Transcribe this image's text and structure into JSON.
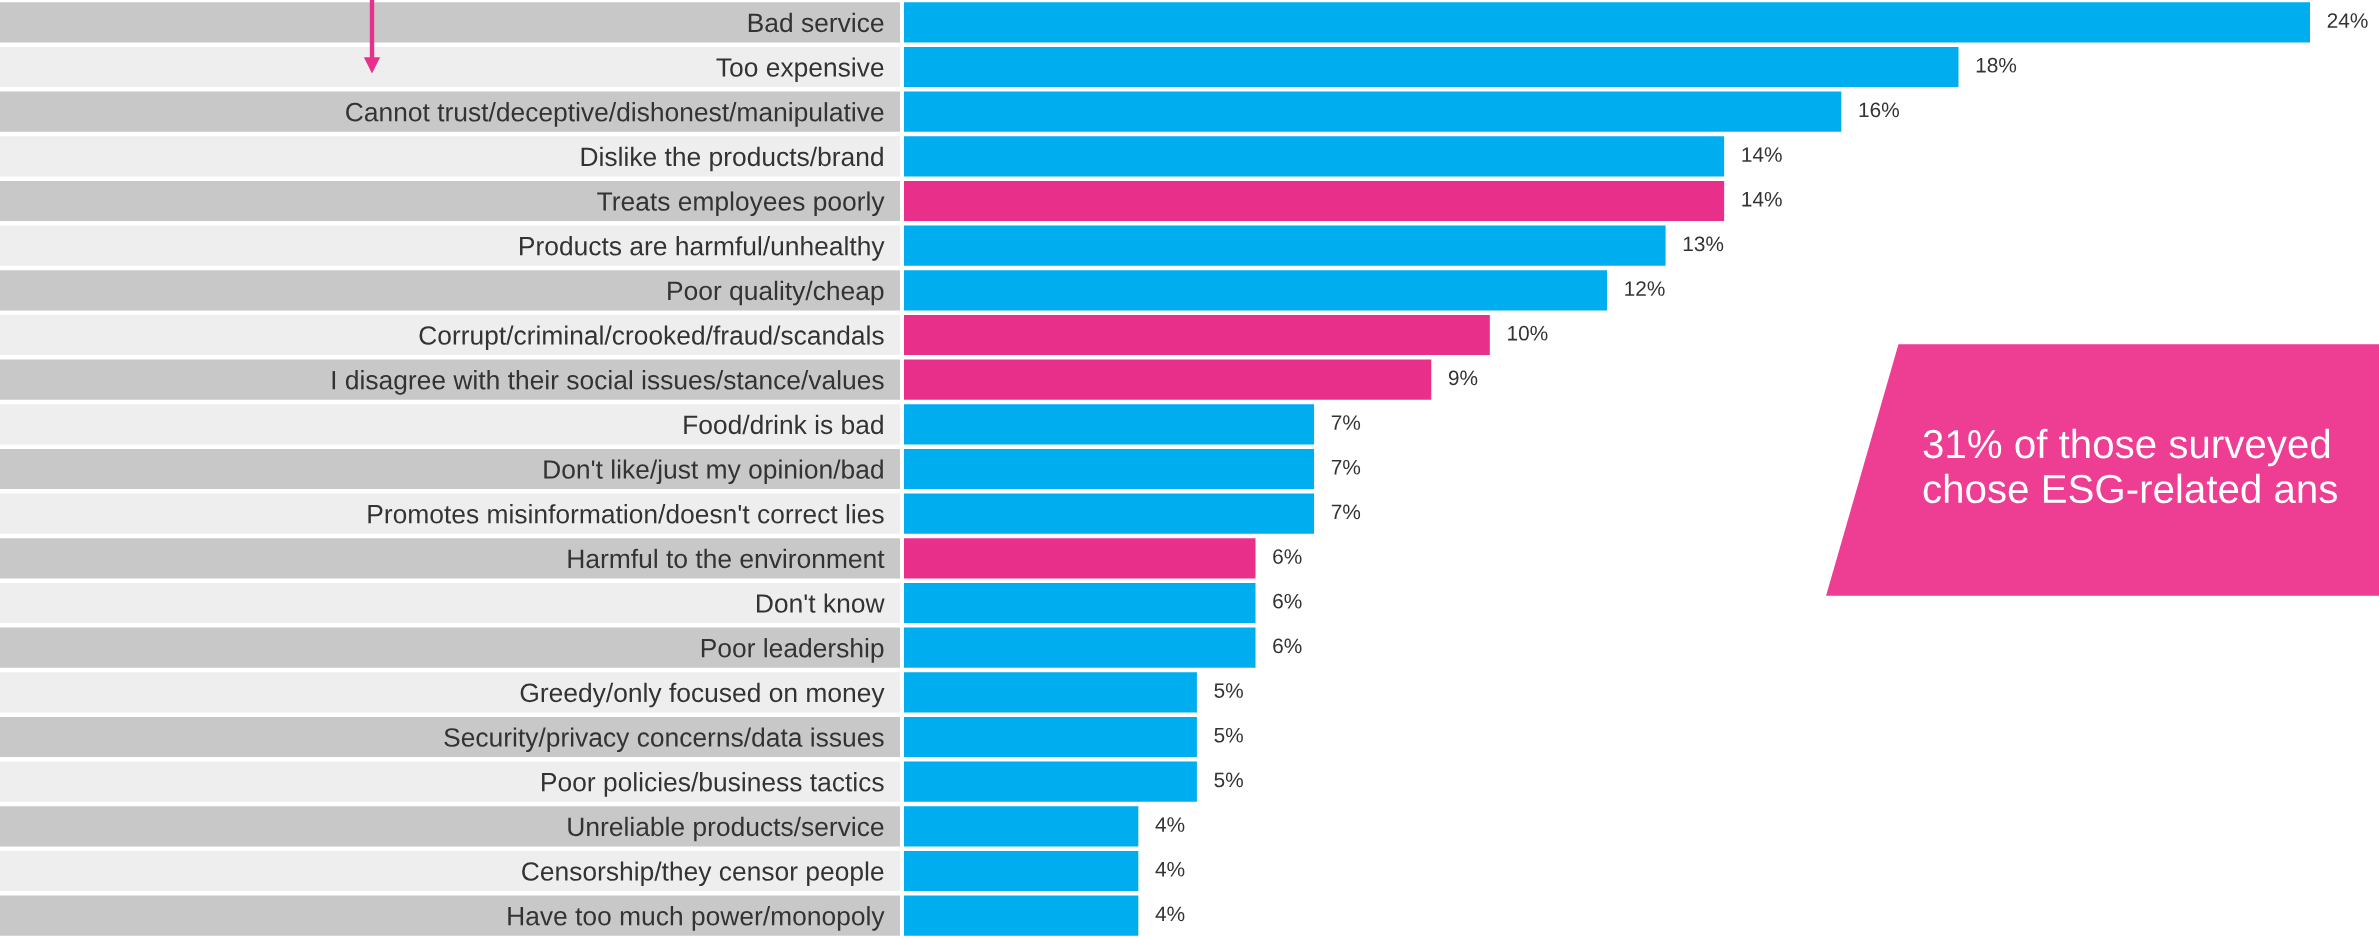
{
  "chart_data": {
    "type": "bar",
    "orientation": "horizontal",
    "categories": [
      "Bad service",
      "Too expensive",
      "Cannot trust/deceptive/dishonest/manipulative",
      "Dislike the products/brand",
      "Treats employees poorly",
      "Products are harmful/unhealthy",
      "Poor quality/cheap",
      "Corrupt/criminal/crooked/fraud/scandals",
      "I disagree with their social issues/stance/values",
      "Food/drink is bad",
      "Don't like/just my opinion/bad",
      "Promotes misinformation/doesn't correct lies",
      "Harmful to the environment",
      "Don't know",
      "Poor leadership",
      "Greedy/only focused on money",
      "Security/privacy concerns/data issues",
      "Poor policies/business tactics",
      "Unreliable products/service",
      "Censorship/they censor people",
      "Have too much power/monopoly"
    ],
    "values": [
      24,
      18,
      16,
      14,
      14,
      13,
      12,
      10,
      9,
      7,
      7,
      7,
      6,
      6,
      6,
      5,
      5,
      5,
      4,
      4,
      4
    ],
    "value_labels": [
      "24%",
      "18%",
      "16%",
      "14%",
      "14%",
      "13%",
      "12%",
      "10%",
      "9%",
      "7%",
      "7%",
      "7%",
      "6%",
      "6%",
      "6%",
      "5%",
      "5%",
      "5%",
      "4%",
      "4%",
      "4%"
    ],
    "colors": [
      "#00adef",
      "#00adef",
      "#00adef",
      "#00adef",
      "#e8308a",
      "#00adef",
      "#00adef",
      "#e8308a",
      "#e8308a",
      "#00adef",
      "#00adef",
      "#00adef",
      "#e8308a",
      "#00adef",
      "#00adef",
      "#00adef",
      "#00adef",
      "#00adef",
      "#00adef",
      "#00adef",
      "#00adef"
    ],
    "annotations": [
      "31% of those surveyed\nchose ESG-related ans"
    ],
    "grid": false,
    "legend": false
  }
}
